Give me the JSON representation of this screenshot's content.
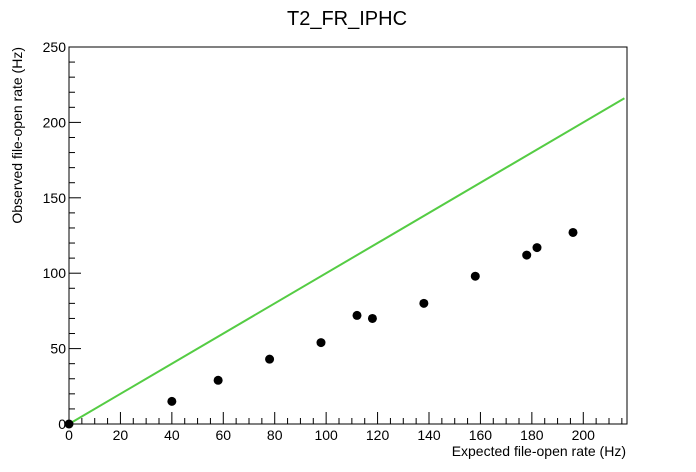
{
  "chart_data": {
    "type": "scatter",
    "title": "T2_FR_IPHC",
    "xlabel": "Expected file-open rate (Hz)",
    "ylabel": "Observed file-open rate (Hz)",
    "xlim": [
      0,
      217
    ],
    "ylim": [
      0,
      250
    ],
    "x_ticks": [
      0,
      20,
      40,
      60,
      80,
      100,
      120,
      140,
      160,
      180,
      200
    ],
    "y_ticks": [
      0,
      50,
      100,
      150,
      200,
      250
    ],
    "grid": false,
    "series": [
      {
        "type": "scatter",
        "color": "#000000",
        "points": [
          {
            "x": 0,
            "y": 0
          },
          {
            "x": 40,
            "y": 15
          },
          {
            "x": 58,
            "y": 29
          },
          {
            "x": 78,
            "y": 43
          },
          {
            "x": 98,
            "y": 54
          },
          {
            "x": 112,
            "y": 72
          },
          {
            "x": 118,
            "y": 70
          },
          {
            "x": 138,
            "y": 80
          },
          {
            "x": 158,
            "y": 98
          },
          {
            "x": 178,
            "y": 112
          },
          {
            "x": 182,
            "y": 117
          },
          {
            "x": 196,
            "y": 127
          }
        ]
      },
      {
        "type": "line",
        "color": "#55cc44",
        "points": [
          {
            "x": 0,
            "y": 0
          },
          {
            "x": 216,
            "y": 216
          }
        ]
      }
    ]
  }
}
